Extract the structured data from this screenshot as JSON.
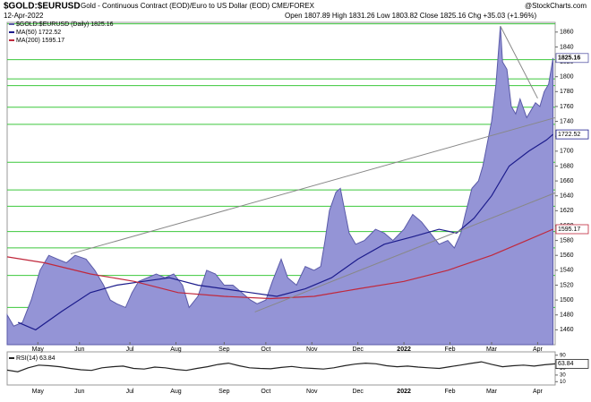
{
  "chart_data": [
    {
      "type": "area",
      "symbol": "$GOLD:$EURUSD",
      "description": "Gold - Continuous Contract (EOD)/Euro to US Dollar (EOD) CME/FOREX",
      "source": "@StockCharts.com",
      "date": "12-Apr-2022",
      "quote": "Open 1807.89  High 1831.26  Low 1803.82  Close 1825.16  Chg +35.03 (+1.96%)",
      "xlim": [
        0,
        250
      ],
      "xticks": [
        {
          "value": 14,
          "label": "May"
        },
        {
          "value": 33,
          "label": "Jun"
        },
        {
          "value": 56,
          "label": "Jul"
        },
        {
          "value": 77,
          "label": "Aug"
        },
        {
          "value": 99,
          "label": "Sep"
        },
        {
          "value": 118,
          "label": "Oct"
        },
        {
          "value": 139,
          "label": "Nov"
        },
        {
          "value": 160,
          "label": "Dec"
        },
        {
          "value": 181,
          "label": "2022"
        },
        {
          "value": 202,
          "label": "Feb"
        },
        {
          "value": 221,
          "label": "Mar"
        },
        {
          "value": 242,
          "label": "Apr"
        }
      ],
      "ylim": [
        1440,
        1873
      ],
      "yticks": [
        1460,
        1480,
        1500,
        1520,
        1540,
        1560,
        1580,
        1600,
        1620,
        1640,
        1660,
        1680,
        1700,
        1720,
        1740,
        1760,
        1780,
        1800,
        1820,
        1840,
        1860
      ],
      "series": [
        {
          "name": "$GOLD:$EURUSD (Daily) 1825.16",
          "color": "#5a5aa8",
          "fill": "#9494d6",
          "last_value": 1825.16,
          "x": [
            0,
            3,
            7,
            11,
            15,
            19,
            23,
            27,
            31,
            36,
            40,
            44,
            47,
            50,
            54,
            57,
            60,
            64,
            68,
            72,
            76,
            80,
            83,
            87,
            91,
            95,
            99,
            103,
            107,
            111,
            114,
            118,
            121,
            125,
            128,
            132,
            136,
            140,
            143,
            145,
            147,
            150,
            152,
            154,
            156,
            159,
            163,
            168,
            172,
            176,
            181,
            185,
            189,
            193,
            197,
            201,
            204,
            207,
            209,
            212,
            215,
            217,
            219,
            221,
            223,
            225,
            226,
            228,
            230,
            232,
            234,
            237,
            239,
            241,
            243,
            245,
            247,
            249
          ],
          "values": [
            1480,
            1465,
            1470,
            1500,
            1540,
            1560,
            1555,
            1550,
            1560,
            1555,
            1540,
            1520,
            1500,
            1495,
            1490,
            1510,
            1525,
            1530,
            1535,
            1530,
            1535,
            1520,
            1490,
            1505,
            1540,
            1535,
            1520,
            1520,
            1510,
            1500,
            1495,
            1500,
            1525,
            1555,
            1530,
            1520,
            1545,
            1540,
            1545,
            1580,
            1620,
            1645,
            1650,
            1620,
            1590,
            1575,
            1580,
            1595,
            1590,
            1580,
            1595,
            1615,
            1605,
            1590,
            1575,
            1580,
            1570,
            1590,
            1615,
            1650,
            1660,
            1680,
            1710,
            1740,
            1790,
            1868,
            1820,
            1810,
            1760,
            1750,
            1770,
            1745,
            1755,
            1765,
            1760,
            1780,
            1790,
            1825.16
          ]
        },
        {
          "name": "MA(50) 1722.52",
          "color": "#1c1c8c",
          "last_value": 1722.52,
          "x": [
            5,
            13,
            25,
            38,
            50,
            62,
            74,
            87,
            99,
            111,
            123,
            136,
            148,
            160,
            172,
            185,
            197,
            205,
            213,
            221,
            229,
            238,
            246,
            249
          ],
          "values": [
            1470,
            1460,
            1485,
            1510,
            1520,
            1525,
            1530,
            1520,
            1515,
            1510,
            1505,
            1515,
            1530,
            1555,
            1575,
            1585,
            1595,
            1590,
            1610,
            1640,
            1680,
            1700,
            1715,
            1722.52
          ]
        },
        {
          "name": "MA(200) 1595.17",
          "color": "#c0283c",
          "last_value": 1595.17,
          "x": [
            0,
            17,
            38,
            58,
            78,
            99,
            120,
            140,
            160,
            181,
            201,
            221,
            237,
            249
          ],
          "values": [
            1558,
            1550,
            1535,
            1525,
            1510,
            1505,
            1502,
            1505,
            1515,
            1525,
            1540,
            1560,
            1580,
            1595.17
          ]
        }
      ],
      "levels": {
        "color": "#3cc83c",
        "values": [
          1871,
          1823,
          1797,
          1788,
          1759,
          1736,
          1685,
          1648,
          1626,
          1592,
          1570,
          1533,
          1490
        ]
      },
      "trendlines": {
        "color": "#888888",
        "lines": [
          {
            "x": [
              29,
              250
            ],
            "y": [
              1562,
              1745
            ]
          },
          {
            "x": [
              113,
              250
            ],
            "y": [
              1484,
              1644
            ]
          },
          {
            "x": [
              225,
              242
            ],
            "y": [
              1868,
              1771
            ]
          }
        ]
      }
    },
    {
      "type": "line",
      "xlim": [
        0,
        250
      ],
      "ylim": [
        0,
        100
      ],
      "yticks": [
        10,
        30,
        50,
        70,
        90
      ],
      "series": [
        {
          "name": "RSI(14) 63.84",
          "color": "#222222",
          "last_value": 63.84,
          "values": [
            45,
            40,
            52,
            60,
            58,
            55,
            50,
            46,
            44,
            52,
            55,
            57,
            50,
            48,
            54,
            52,
            47,
            44,
            50,
            55,
            62,
            66,
            58,
            52,
            50,
            49,
            53,
            56,
            52,
            50,
            48,
            52,
            58,
            63,
            66,
            64,
            58,
            55,
            57,
            54,
            52,
            50,
            55,
            60,
            65,
            70,
            62,
            55,
            58,
            60,
            57,
            61,
            63.84
          ]
        }
      ]
    }
  ]
}
